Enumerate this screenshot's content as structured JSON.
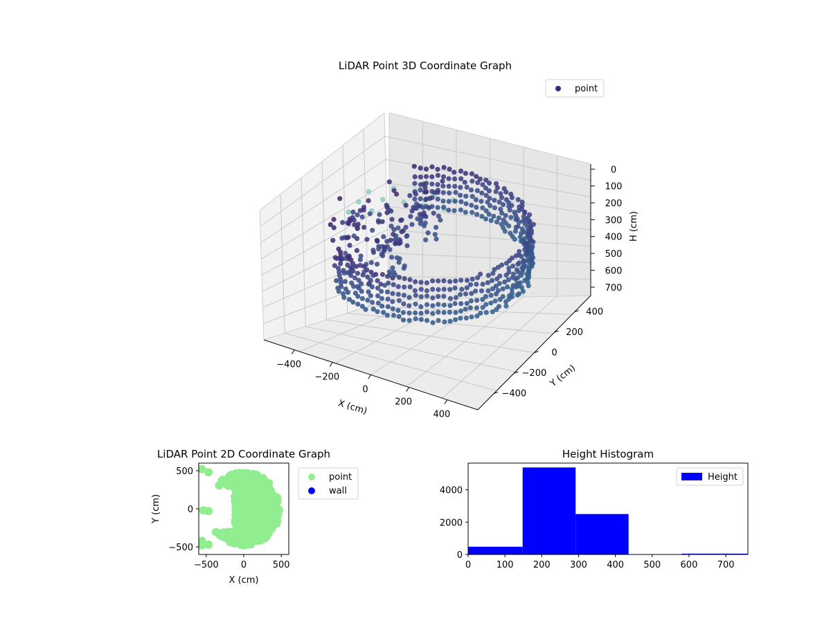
{
  "chart_data": [
    {
      "id": "lidar3d",
      "type": "scatter",
      "title": "LiDAR Point 3D Coordinate Graph",
      "xlabel": "X (cm)",
      "ylabel": "Y (cm)",
      "zlabel": "H (cm)",
      "xlim": [
        -560,
        560
      ],
      "ylim": [
        -560,
        560
      ],
      "zlim": [
        750,
        -30
      ],
      "x_ticks": [
        -400,
        -200,
        0,
        200,
        400
      ],
      "y_ticks": [
        -400,
        -200,
        0,
        200,
        400
      ],
      "z_ticks": [
        0,
        100,
        200,
        300,
        400,
        500,
        600,
        700
      ],
      "grid": true,
      "legend": {
        "placement": "top-right",
        "entries": [
          "point"
        ]
      },
      "colors": {
        "point": "#3b2a7a",
        "dark": "#440154",
        "mid": "#3e4a89",
        "light": "#8fd1c4"
      },
      "series": [
        {
          "name": "point",
          "shape": "cylindrical wall of points, radius about 480 cm, heights about 200–430 cm, opening on the negative-X side",
          "ring_radius": 480,
          "height_range": [
            200,
            430
          ],
          "opening_angle_deg": [
            125,
            235
          ],
          "floor_points": [
            [
              -560,
              480,
              500
            ],
            [
              -560,
              380,
              500
            ],
            [
              -560,
              280,
              500
            ],
            [
              -460,
              540,
              480
            ],
            [
              -460,
              430,
              480
            ],
            [
              -460,
              320,
              480
            ],
            [
              -360,
              560,
              470
            ],
            [
              -360,
              450,
              470
            ],
            [
              -260,
              560,
              460
            ],
            [
              -260,
              460,
              460
            ],
            [
              -160,
              560,
              450
            ],
            [
              -160,
              470,
              450
            ]
          ]
        }
      ]
    },
    {
      "id": "lidar2d",
      "type": "scatter",
      "title": "LiDAR Point 2D Coordinate Graph",
      "xlabel": "X (cm)",
      "ylabel": "Y (cm)",
      "xlim": [
        -600,
        600
      ],
      "ylim": [
        -600,
        600
      ],
      "x_ticks": [
        -500,
        0,
        500
      ],
      "y_ticks": [
        -500,
        0,
        500
      ],
      "legend": {
        "placement": "outside-right",
        "entries": [
          "point",
          "wall"
        ]
      },
      "colors": {
        "point": "#90ee90",
        "wall": "#0000ff"
      },
      "series": [
        {
          "name": "point",
          "shape": "filled disc of radius about 480 cm with a notch on the negative-X side"
        },
        {
          "name": "wall",
          "points": []
        }
      ]
    },
    {
      "id": "height_hist",
      "type": "bar",
      "title": "Height Histogram",
      "legend": {
        "placement": "top-right",
        "entries": [
          "Height"
        ]
      },
      "colors": {
        "bar": "#0000ff"
      },
      "xlim": [
        0,
        760
      ],
      "ylim": [
        0,
        5650
      ],
      "x_ticks": [
        0,
        100,
        200,
        300,
        400,
        500,
        600,
        700
      ],
      "y_ticks": [
        0,
        2000,
        4000
      ],
      "bins": [
        {
          "start": 0,
          "end": 148,
          "count": 480
        },
        {
          "start": 148,
          "end": 292,
          "count": 5380
        },
        {
          "start": 292,
          "end": 436,
          "count": 2500
        },
        {
          "start": 436,
          "end": 580,
          "count": 0
        },
        {
          "start": 580,
          "end": 760,
          "count": 50
        }
      ]
    }
  ]
}
